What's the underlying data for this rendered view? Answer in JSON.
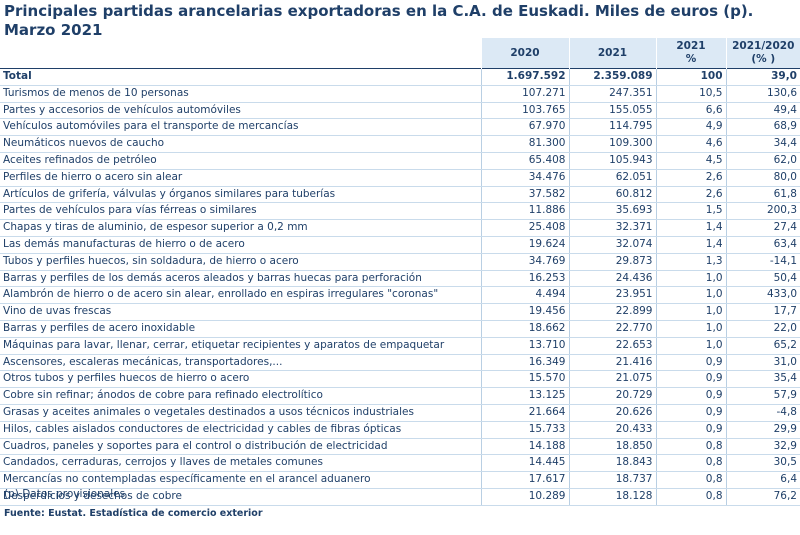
{
  "title": "Principales partidas arancelarias exportadoras en la C.A. de Euskadi. Miles de euros (p). Marzo 2021",
  "headers": {
    "col1": "2020",
    "col2": "2021",
    "col3_line1": "2021",
    "col3_line2": "%",
    "col4_line1": "2021/2020",
    "col4_line2": "(% )"
  },
  "rows": [
    {
      "label": "Total",
      "v2020": "1.697.592",
      "v2021": "2.359.089",
      "pct": "100",
      "var": "39,0"
    },
    {
      "label": "Turismos de menos de  10 personas",
      "v2020": "107.271",
      "v2021": "247.351",
      "pct": "10,5",
      "var": "130,6"
    },
    {
      "label": "Partes y accesorios de vehículos automóviles",
      "v2020": "103.765",
      "v2021": "155.055",
      "pct": "6,6",
      "var": "49,4"
    },
    {
      "label": "Vehículos automóviles para el transporte de mercancías",
      "v2020": "67.970",
      "v2021": "114.795",
      "pct": "4,9",
      "var": "68,9"
    },
    {
      "label": "Neumáticos nuevos de caucho",
      "v2020": "81.300",
      "v2021": "109.300",
      "pct": "4,6",
      "var": "34,4"
    },
    {
      "label": "Aceites refinados de petróleo",
      "v2020": "65.408",
      "v2021": "105.943",
      "pct": "4,5",
      "var": "62,0"
    },
    {
      "label": "Perfiles de hierro o acero sin alear",
      "v2020": "34.476",
      "v2021": "62.051",
      "pct": "2,6",
      "var": "80,0"
    },
    {
      "label": "Artículos de grifería, válvulas y órganos similares para tuberías",
      "v2020": "37.582",
      "v2021": "60.812",
      "pct": "2,6",
      "var": "61,8"
    },
    {
      "label": "Partes de vehículos para vías férreas o similares",
      "v2020": "11.886",
      "v2021": "35.693",
      "pct": "1,5",
      "var": "200,3"
    },
    {
      "label": "Chapas y tiras de aluminio, de espesor superior a 0,2 mm",
      "v2020": "25.408",
      "v2021": "32.371",
      "pct": "1,4",
      "var": "27,4"
    },
    {
      "label": "Las demás manufacturas de hierro o de acero",
      "v2020": "19.624",
      "v2021": "32.074",
      "pct": "1,4",
      "var": "63,4"
    },
    {
      "label": "Tubos y perfiles huecos, sin soldadura, de hierro o acero",
      "v2020": "34.769",
      "v2021": "29.873",
      "pct": "1,3",
      "var": "-14,1"
    },
    {
      "label": "Barras y perfiles de los demás aceros aleados y barras huecas para perforación",
      "v2020": "16.253",
      "v2021": "24.436",
      "pct": "1,0",
      "var": "50,4"
    },
    {
      "label": "Alambrón de hierro o de acero sin alear, enrollado en espiras irregulares \"coronas\"",
      "v2020": "4.494",
      "v2021": "23.951",
      "pct": "1,0",
      "var": "433,0"
    },
    {
      "label": "Vino de uvas frescas",
      "v2020": "19.456",
      "v2021": "22.899",
      "pct": "1,0",
      "var": "17,7"
    },
    {
      "label": "Barras y perfiles de acero inoxidable",
      "v2020": "18.662",
      "v2021": "22.770",
      "pct": "1,0",
      "var": "22,0"
    },
    {
      "label": "Máquinas para lavar, llenar, cerrar, etiquetar recipientes  y aparatos de empaquetar",
      "v2020": "13.710",
      "v2021": "22.653",
      "pct": "1,0",
      "var": "65,2"
    },
    {
      "label": "Ascensores, escaleras mecánicas, transportadores,...",
      "v2020": "16.349",
      "v2021": "21.416",
      "pct": "0,9",
      "var": "31,0"
    },
    {
      "label": "Otros tubos y perfiles huecos de hierro o acero",
      "v2020": "15.570",
      "v2021": "21.075",
      "pct": "0,9",
      "var": "35,4"
    },
    {
      "label": "Cobre sin refinar; ánodos de cobre para refinado electrolítico",
      "v2020": "13.125",
      "v2021": "20.729",
      "pct": "0,9",
      "var": "57,9"
    },
    {
      "label": "Grasas y aceites animales o vegetales destinados a usos técnicos  industriales",
      "v2020": "21.664",
      "v2021": "20.626",
      "pct": "0,9",
      "var": "-4,8"
    },
    {
      "label": "Hilos, cables aislados conductores de electricidad y cables de fibras ópticas",
      "v2020": "15.733",
      "v2021": "20.433",
      "pct": "0,9",
      "var": "29,9"
    },
    {
      "label": "Cuadros, paneles y soportes para el control o distribución de electricidad",
      "v2020": "14.188",
      "v2021": "18.850",
      "pct": "0,8",
      "var": "32,9"
    },
    {
      "label": "Candados, cerraduras, cerrojos y llaves de metales comunes",
      "v2020": "14.445",
      "v2021": "18.843",
      "pct": "0,8",
      "var": "30,5"
    },
    {
      "label": "Mercancías no contempladas específicamente en el arancel aduanero",
      "v2020": "17.617",
      "v2021": "18.737",
      "pct": "0,8",
      "var": "6,4"
    },
    {
      "label": "Desperdicios y desechos de cobre",
      "v2020": "10.289",
      "v2021": "18.128",
      "pct": "0,8",
      "var": "76,2"
    }
  ],
  "note": "(p) Datos provisionales",
  "source": "Fuente: Eustat. Estadística de comercio exterior"
}
